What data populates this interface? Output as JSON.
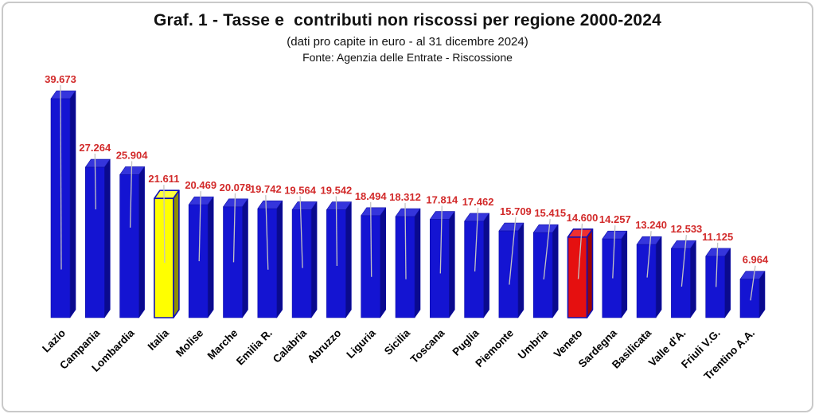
{
  "header": {
    "title": "Graf. 1 - Tasse e  contributi non riscossi per regione 2000-2024",
    "subtitle": "(dati pro capite in euro - al 31 dicembre 2024)",
    "source": "Fonte: Agenzia delle Entrate - Riscossione"
  },
  "chart_data": {
    "type": "bar",
    "style": "3d-columns",
    "title": "Graf. 1 - Tasse e  contributi non riscossi per regione 2000-2024",
    "subtitle": "(dati pro capite in euro - al 31 dicembre 2024)",
    "source": "Fonte: Agenzia delle Entrate - Riscossione",
    "xlabel": "",
    "ylabel": "",
    "ylim": [
      0,
      40000
    ],
    "grid": false,
    "legend": false,
    "value_axis_visible": false,
    "categories": [
      "Lazio",
      "Campania",
      "Lombardia",
      "Italia",
      "Molise",
      "Marche",
      "Emilia R.",
      "Calabria",
      "Abruzzo",
      "Liguria",
      "Sicilia",
      "Toscana",
      "Puglia",
      "Piemonte",
      "Umbria",
      "Veneto",
      "Sardegna",
      "Basilicata",
      "Valle d'A.",
      "Friuli V.G.",
      "Trentino A.A."
    ],
    "values": [
      39673,
      27264,
      25904,
      21611,
      20469,
      20078,
      19742,
      19564,
      19542,
      18494,
      18312,
      17814,
      17462,
      15709,
      15415,
      14600,
      14257,
      13240,
      12533,
      11125,
      6964
    ],
    "value_labels": [
      "39.673",
      "27.264",
      "25.904",
      "21.611",
      "20.469",
      "20.078",
      "19.742",
      "19.564",
      "19.542",
      "18.494",
      "18.312",
      "17.814",
      "17.462",
      "15.709",
      "15.415",
      "14.600",
      "14.257",
      "13.240",
      "12.533",
      "11.125",
      "6.964"
    ],
    "label_color": "#D22A2A",
    "category_color": "#000000",
    "leader_line_color": "#C3C3C3",
    "highlights": {
      "Italia": "italia",
      "Veneto": "veneto"
    },
    "colors": {
      "default": {
        "front": "#1414D2",
        "top": "#3535DC",
        "side": "#0A0A8E",
        "stroke": "#0E0EA8"
      },
      "italia": {
        "front": "#FFFF00",
        "top": "#FFFF3D",
        "side": "#8F8F00",
        "stroke": "#1010B4"
      },
      "veneto": {
        "front": "#E51010",
        "top": "#EF3030",
        "side": "#9B0404",
        "stroke": "#1010B4"
      }
    },
    "frame_border_color": "#C9C9C9",
    "background": "#FFFFFF"
  }
}
